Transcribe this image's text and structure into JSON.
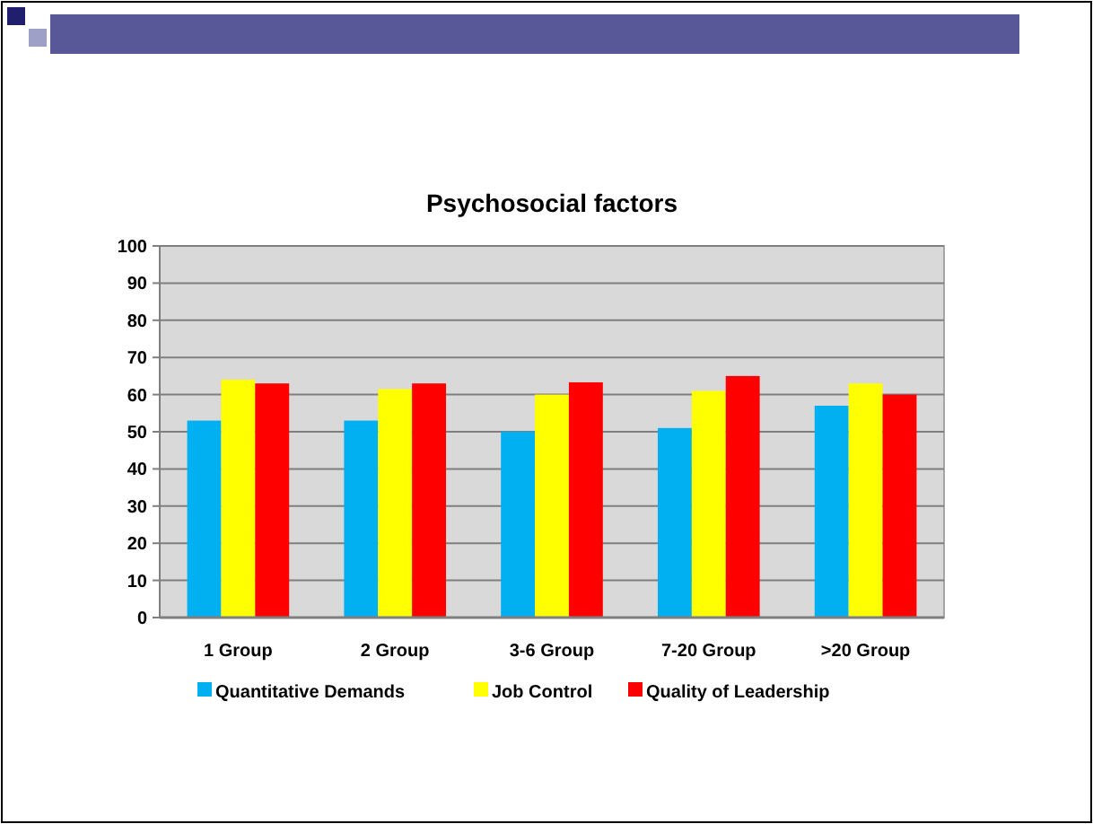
{
  "chart_data": {
    "type": "bar",
    "title": "Psychosocial factors",
    "categories": [
      "1 Group",
      "2 Group",
      "3-6 Group",
      "7-20 Group",
      ">20 Group"
    ],
    "series": [
      {
        "name": "Quantitative Demands",
        "color": "#00b0f0",
        "values": [
          53,
          53,
          50,
          51,
          57
        ]
      },
      {
        "name": "Job Control",
        "color": "#ffff00",
        "values": [
          64,
          61.5,
          60,
          61,
          63
        ]
      },
      {
        "name": "Quality of Leadership",
        "color": "#ff0000",
        "values": [
          63,
          63,
          63.3,
          65,
          60
        ]
      }
    ],
    "ylim": [
      0,
      100
    ],
    "yticks": [
      0,
      10,
      20,
      30,
      40,
      50,
      60,
      70,
      80,
      90,
      100
    ],
    "grid": "y",
    "legend": "bottom"
  }
}
